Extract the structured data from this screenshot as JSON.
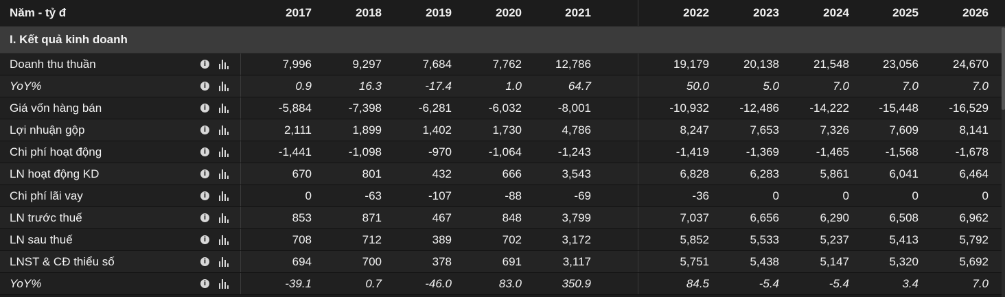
{
  "header": {
    "label": "Năm - tỷ đ",
    "years": [
      "2017",
      "2018",
      "2019",
      "2020",
      "2021",
      "2022",
      "2023",
      "2024",
      "2025",
      "2026"
    ]
  },
  "section": {
    "title": "I. Kết quả kinh doanh"
  },
  "icons": {
    "info": "info-icon",
    "chart": "bar-chart-icon"
  },
  "rows": [
    {
      "label": "Doanh thu thuần",
      "italic": false,
      "values": [
        "7,996",
        "9,297",
        "7,684",
        "7,762",
        "12,786",
        "19,179",
        "20,138",
        "21,548",
        "23,056",
        "24,670"
      ]
    },
    {
      "label": "YoY%",
      "italic": true,
      "values": [
        "0.9",
        "16.3",
        "-17.4",
        "1.0",
        "64.7",
        "50.0",
        "5.0",
        "7.0",
        "7.0",
        "7.0"
      ]
    },
    {
      "label": "Giá vốn hàng bán",
      "italic": false,
      "values": [
        "-5,884",
        "-7,398",
        "-6,281",
        "-6,032",
        "-8,001",
        "-10,932",
        "-12,486",
        "-14,222",
        "-15,448",
        "-16,529"
      ]
    },
    {
      "label": "Lợi nhuận gộp",
      "italic": false,
      "values": [
        "2,111",
        "1,899",
        "1,402",
        "1,730",
        "4,786",
        "8,247",
        "7,653",
        "7,326",
        "7,609",
        "8,141"
      ]
    },
    {
      "label": "Chi phí hoạt động",
      "italic": false,
      "values": [
        "-1,441",
        "-1,098",
        "-970",
        "-1,064",
        "-1,243",
        "-1,419",
        "-1,369",
        "-1,465",
        "-1,568",
        "-1,678"
      ]
    },
    {
      "label": "LN hoạt động KD",
      "italic": false,
      "values": [
        "670",
        "801",
        "432",
        "666",
        "3,543",
        "6,828",
        "6,283",
        "5,861",
        "6,041",
        "6,464"
      ]
    },
    {
      "label": "Chi phí lãi vay",
      "italic": false,
      "values": [
        "0",
        "-63",
        "-107",
        "-88",
        "-69",
        "-36",
        "0",
        "0",
        "0",
        "0"
      ]
    },
    {
      "label": "LN trước thuế",
      "italic": false,
      "values": [
        "853",
        "871",
        "467",
        "848",
        "3,799",
        "7,037",
        "6,656",
        "6,290",
        "6,508",
        "6,962"
      ]
    },
    {
      "label": "LN sau thuế",
      "italic": false,
      "values": [
        "708",
        "712",
        "389",
        "702",
        "3,172",
        "5,852",
        "5,533",
        "5,237",
        "5,413",
        "5,792"
      ]
    },
    {
      "label": "LNST & CĐ thiểu số",
      "italic": false,
      "values": [
        "694",
        "700",
        "378",
        "691",
        "3,117",
        "5,751",
        "5,438",
        "5,147",
        "5,320",
        "5,692"
      ]
    },
    {
      "label": "YoY%",
      "italic": true,
      "values": [
        "-39.1",
        "0.7",
        "-46.0",
        "83.0",
        "350.9",
        "84.5",
        "-5.4",
        "-5.4",
        "3.4",
        "7.0"
      ]
    }
  ]
}
